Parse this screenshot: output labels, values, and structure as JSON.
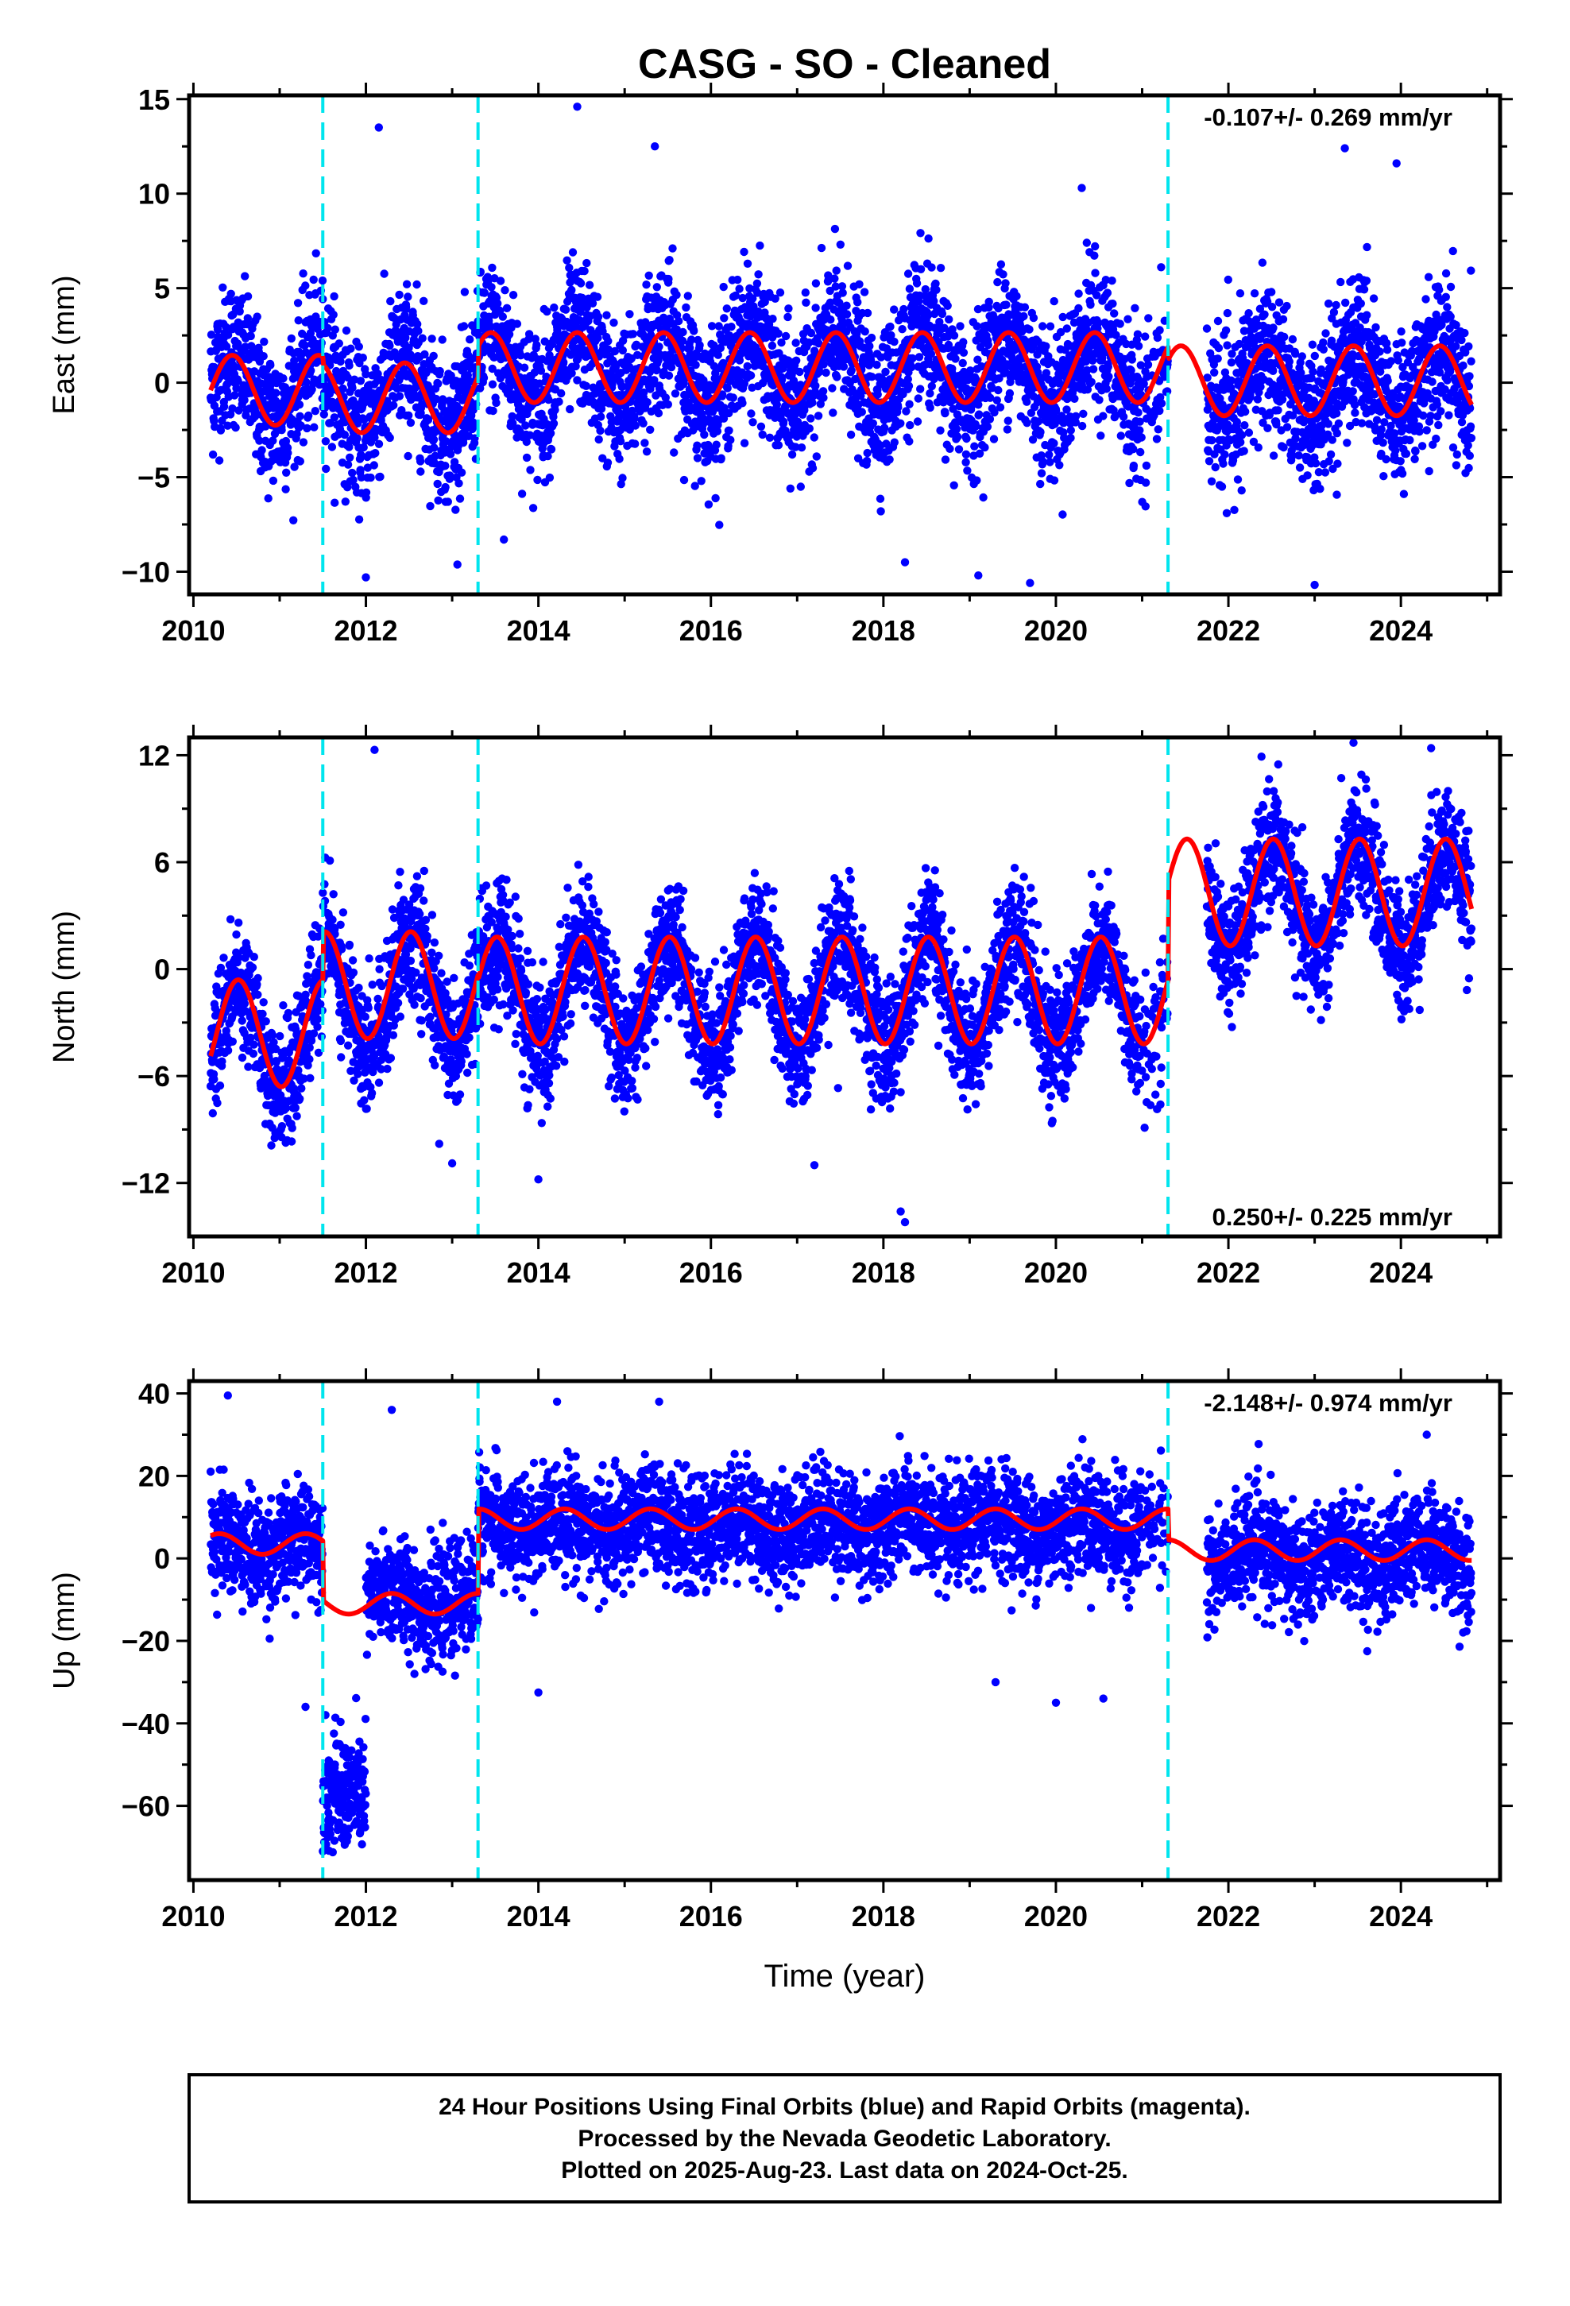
{
  "title": "CASG  - SO - Cleaned",
  "x_label": "Time (year)",
  "footer": {
    "line1": "24 Hour Positions Using Final Orbits (blue) and Rapid Orbits (magenta).",
    "line2": "Processed by the Nevada Geodetic Laboratory.",
    "line3": "Plotted on 2025-Aug-23. Last data on 2024-Oct-25."
  },
  "colors": {
    "points": "#0000ff",
    "model": "#ff0000",
    "breaks": "#00e5ee",
    "axes": "#000000"
  },
  "chart_data": [
    {
      "type": "scatter",
      "panel": "east",
      "ylabel": "East (mm)",
      "rate_text": "-0.107+/- 0.269 mm/yr",
      "rate_position": "top-right",
      "xlim": [
        2009.95,
        2025.15
      ],
      "ylim": [
        -11.2,
        15.2
      ],
      "x_ticks": [
        "2010",
        "2012",
        "2014",
        "2016",
        "2018",
        "2020",
        "2022",
        "2024"
      ],
      "y_ticks": [
        "15",
        "10",
        "5",
        "0",
        "−5",
        "−10"
      ],
      "y_tick_values": [
        15,
        10,
        5,
        0,
        -5,
        -10
      ],
      "break_epochs": [
        2011.5,
        2013.3,
        2021.3
      ],
      "series": [
        {
          "kind": "points",
          "x_range": [
            2010.2,
            2024.82
          ],
          "seasonal_amplitude": 1.8,
          "seasonal_phase_peak": 0.45,
          "scatter_sigma": 1.9,
          "offsets": [
            -0.2,
            -0.6,
            0.7,
            -0.1
          ]
        },
        {
          "kind": "model_line",
          "x_range": [
            2010.2,
            2024.82
          ],
          "seasonal_amplitude": 1.85,
          "seasonal_phase_peak": 0.45,
          "offsets": [
            -0.4,
            -0.8,
            0.8,
            0.1
          ]
        }
      ],
      "outliers": [
        [
          2012.15,
          13.5
        ],
        [
          2014.45,
          14.6
        ],
        [
          2015.35,
          12.5
        ],
        [
          2020.3,
          10.3
        ],
        [
          2023.35,
          12.4
        ],
        [
          2023.95,
          11.6
        ],
        [
          2013.6,
          -8.3
        ],
        [
          2019.1,
          -10.2
        ],
        [
          2019.7,
          -10.6
        ],
        [
          2023.0,
          -10.7
        ],
        [
          2018.25,
          -9.5
        ],
        [
          2012.0,
          -10.3
        ]
      ]
    },
    {
      "type": "scatter",
      "panel": "north",
      "ylabel": "North (mm)",
      "rate_text": "0.250+/- 0.225 mm/yr",
      "rate_position": "bottom-right",
      "xlim": [
        2009.95,
        2025.15
      ],
      "ylim": [
        -15.0,
        13.0
      ],
      "x_ticks": [
        "2010",
        "2012",
        "2014",
        "2016",
        "2018",
        "2020",
        "2022",
        "2024"
      ],
      "y_ticks": [
        "12",
        "6",
        "0",
        "−6",
        "−12"
      ],
      "y_tick_values": [
        12,
        6,
        0,
        -6,
        -12
      ],
      "break_epochs": [
        2011.5,
        2013.3,
        2021.3
      ],
      "series": [
        {
          "kind": "points",
          "x_range": [
            2010.2,
            2024.82
          ],
          "seasonal_amplitude": 3.0,
          "seasonal_phase_peak": 0.52,
          "scatter_sigma": 1.7,
          "offsets": [
            -3.8,
            -1.3,
            -1.4,
            3.9
          ]
        },
        {
          "kind": "model_line",
          "x_range": [
            2010.2,
            2024.82
          ],
          "seasonal_amplitude": 3.0,
          "seasonal_phase_peak": 0.52,
          "offsets": [
            -3.6,
            -0.9,
            -1.2,
            4.3
          ]
        }
      ],
      "outliers": [
        [
          2012.1,
          12.3
        ],
        [
          2023.45,
          12.7
        ],
        [
          2024.35,
          12.4
        ],
        [
          2014.0,
          -11.8
        ],
        [
          2017.2,
          -11.0
        ],
        [
          2018.25,
          -14.2
        ],
        [
          2018.2,
          -13.6
        ],
        [
          2013.0,
          -10.9
        ],
        [
          2012.85,
          -9.8
        ]
      ]
    },
    {
      "type": "scatter",
      "panel": "up",
      "ylabel": "Up (mm)",
      "rate_text": "-2.148+/- 0.974 mm/yr",
      "rate_position": "top-right",
      "xlim": [
        2009.95,
        2025.15
      ],
      "ylim": [
        -78.0,
        43.0
      ],
      "x_ticks": [
        "2010",
        "2012",
        "2014",
        "2016",
        "2018",
        "2020",
        "2022",
        "2024"
      ],
      "y_ticks": [
        "40",
        "20",
        "0",
        "−20",
        "−40",
        "−60"
      ],
      "y_tick_values": [
        40,
        20,
        0,
        -20,
        -40,
        -60
      ],
      "break_epochs": [
        2011.5,
        2013.3,
        2021.3
      ],
      "series": [
        {
          "kind": "points",
          "x_range": [
            2010.2,
            2024.82
          ],
          "seasonal_amplitude": 2.5,
          "seasonal_phase_peak": 0.3,
          "scatter_sigma": 6.5,
          "offsets": [
            3.0,
            -10.0,
            8.0,
            0.5
          ]
        },
        {
          "kind": "model_line",
          "x_range": [
            2010.2,
            2024.82
          ],
          "seasonal_amplitude": 2.5,
          "seasonal_phase_peak": 0.3,
          "offsets": [
            3.5,
            -11.0,
            9.5,
            2.0
          ]
        }
      ],
      "special_cluster": {
        "x_range": [
          2011.5,
          2012.0
        ],
        "y_center": -57,
        "sigma": 7
      },
      "outliers": [
        [
          2010.4,
          39.5
        ],
        [
          2015.4,
          38.0
        ],
        [
          2012.3,
          36.0
        ],
        [
          2014.0,
          -32.5
        ],
        [
          2019.3,
          -30.0
        ],
        [
          2020.0,
          -35.0
        ],
        [
          2024.3,
          30.0
        ],
        [
          2011.3,
          -36.0
        ],
        [
          2020.55,
          -34.0
        ]
      ]
    }
  ]
}
